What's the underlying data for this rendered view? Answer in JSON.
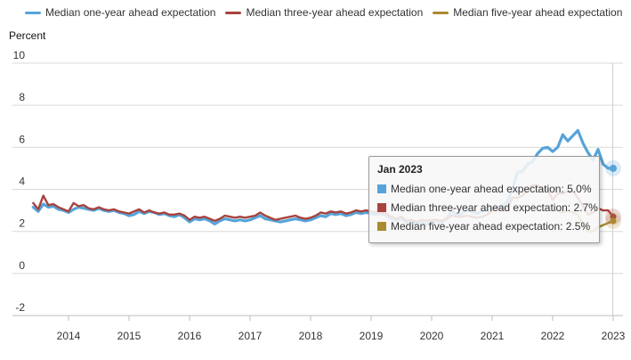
{
  "legend": {
    "items": [
      {
        "label": "Median one-year ahead expectation",
        "color": "#56A4D9"
      },
      {
        "label": "Median three-year ahead expectation",
        "color": "#A8433E"
      },
      {
        "label": "Median five-year ahead expectation",
        "color": "#AC8A30"
      }
    ]
  },
  "chart_data": {
    "type": "line",
    "title": "",
    "ylabel": "Percent",
    "xlabel": "",
    "ylim": [
      -2,
      10
    ],
    "y_ticks": [
      10,
      8,
      6,
      4,
      2,
      0,
      -2
    ],
    "x_ticks": [
      2014,
      2015,
      2016,
      2017,
      2018,
      2019,
      2020,
      2021,
      2022,
      2023
    ],
    "x_range": [
      "2013-06",
      "2023-01"
    ],
    "grid": "horizontal",
    "legend_position": "top",
    "hover_point": {
      "label": "Jan 2023",
      "crosshair_at_year": 2023
    },
    "series": [
      {
        "name": "Median one-year ahead expectation",
        "color": "#56A4D9",
        "start": "2013-06",
        "values": [
          3.15,
          2.95,
          3.3,
          3.15,
          3.2,
          3.05,
          3.0,
          2.9,
          3.05,
          3.15,
          3.1,
          3.05,
          3.0,
          3.1,
          3.0,
          2.95,
          3.0,
          2.9,
          2.85,
          2.75,
          2.8,
          2.95,
          2.85,
          2.95,
          2.9,
          2.8,
          2.85,
          2.75,
          2.7,
          2.8,
          2.65,
          2.45,
          2.6,
          2.55,
          2.6,
          2.5,
          2.35,
          2.5,
          2.6,
          2.55,
          2.5,
          2.55,
          2.5,
          2.55,
          2.65,
          2.75,
          2.6,
          2.55,
          2.5,
          2.45,
          2.5,
          2.55,
          2.6,
          2.55,
          2.5,
          2.55,
          2.65,
          2.75,
          2.7,
          2.85,
          2.8,
          2.85,
          2.75,
          2.8,
          2.9,
          2.85,
          2.9,
          2.85,
          2.8,
          2.85,
          2.75,
          2.6,
          2.55,
          2.6,
          2.4,
          2.45,
          2.35,
          2.45,
          2.3,
          2.5,
          2.5,
          2.45,
          2.6,
          3.0,
          2.75,
          2.85,
          3.0,
          2.95,
          2.85,
          2.95,
          3.0,
          3.05,
          3.1,
          3.2,
          3.4,
          4.0,
          4.8,
          4.85,
          5.2,
          5.3,
          5.7,
          5.95,
          6.0,
          5.8,
          6.0,
          6.6,
          6.3,
          6.55,
          6.8,
          6.2,
          5.75,
          5.4,
          5.9,
          5.2,
          5.0,
          5.0
        ]
      },
      {
        "name": "Median three-year ahead expectation",
        "color": "#A8433E",
        "start": "2013-06",
        "values": [
          3.35,
          3.05,
          3.7,
          3.25,
          3.3,
          3.15,
          3.05,
          2.95,
          3.35,
          3.2,
          3.25,
          3.1,
          3.05,
          3.15,
          3.05,
          3.0,
          3.05,
          2.95,
          2.9,
          2.85,
          2.95,
          3.05,
          2.9,
          3.0,
          2.9,
          2.85,
          2.9,
          2.8,
          2.8,
          2.85,
          2.75,
          2.55,
          2.7,
          2.65,
          2.7,
          2.6,
          2.5,
          2.6,
          2.75,
          2.7,
          2.65,
          2.7,
          2.65,
          2.7,
          2.75,
          2.9,
          2.75,
          2.65,
          2.55,
          2.6,
          2.65,
          2.7,
          2.75,
          2.65,
          2.6,
          2.65,
          2.75,
          2.9,
          2.85,
          2.95,
          2.9,
          2.95,
          2.85,
          2.9,
          3.0,
          2.95,
          3.0,
          2.95,
          2.9,
          2.9,
          2.85,
          2.7,
          2.6,
          2.7,
          2.5,
          2.55,
          2.45,
          2.55,
          2.5,
          2.55,
          2.55,
          2.5,
          2.6,
          2.75,
          2.7,
          2.7,
          2.75,
          2.7,
          2.65,
          2.7,
          2.8,
          3.0,
          3.05,
          3.1,
          3.1,
          3.6,
          3.6,
          3.7,
          4.0,
          4.2,
          4.2,
          4.0,
          4.0,
          3.5,
          3.8,
          3.8,
          3.9,
          3.9,
          3.6,
          3.2,
          2.8,
          2.9,
          3.1,
          3.0,
          3.0,
          2.7
        ]
      },
      {
        "name": "Median five-year ahead expectation",
        "color": "#AC8A30",
        "start": "2022-01",
        "values": [
          3.0,
          3.0,
          2.9,
          3.0,
          2.9,
          2.8,
          2.3,
          2.0,
          2.0,
          2.2,
          2.3,
          2.4,
          2.5
        ]
      }
    ]
  },
  "tooltip": {
    "title": "Jan 2023",
    "rows": [
      {
        "label": "Median one-year ahead expectation",
        "value": "5.0%",
        "color": "#56A4D9"
      },
      {
        "label": "Median three-year ahead expectation",
        "value": "2.7%",
        "color": "#A8433E"
      },
      {
        "label": "Median five-year ahead expectation",
        "value": "2.5%",
        "color": "#AC8A30"
      }
    ]
  }
}
